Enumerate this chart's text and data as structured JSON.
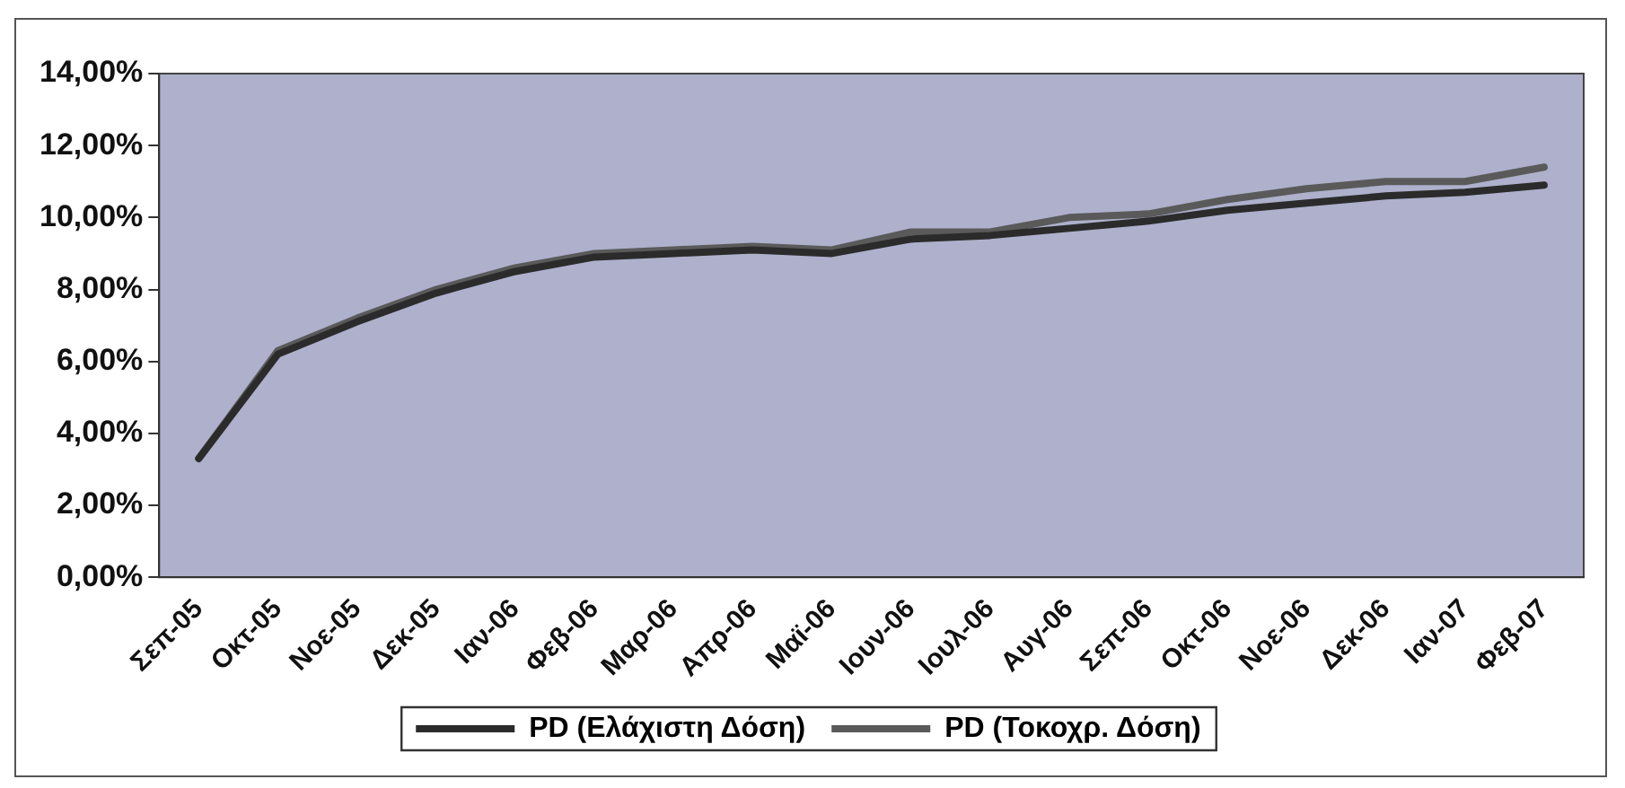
{
  "chart_data": {
    "type": "line",
    "categories": [
      "Σεπ-05",
      "Οκτ-05",
      "Νοε-05",
      "Δεκ-05",
      "Ιαν-06",
      "Φεβ-06",
      "Μαρ-06",
      "Απρ-06",
      "Μαϊ-06",
      "Ιουν-06",
      "Ιουλ-06",
      "Αυγ-06",
      "Σεπ-06",
      "Οκτ-06",
      "Νοε-06",
      "Δεκ-06",
      "Ιαν-07",
      "Φεβ-07"
    ],
    "series": [
      {
        "name": "PD (Ελάχιστη Δόση)",
        "color": "#2b2b2b",
        "values": [
          3.3,
          6.2,
          7.1,
          7.9,
          8.5,
          8.9,
          9.0,
          9.1,
          9.0,
          9.4,
          9.5,
          9.7,
          9.9,
          10.2,
          10.4,
          10.6,
          10.7,
          10.9
        ]
      },
      {
        "name": "PD (Τοκοχρ. Δόση)",
        "color": "#5a5a5a",
        "values": [
          3.3,
          6.3,
          7.2,
          8.0,
          8.6,
          9.0,
          9.1,
          9.2,
          9.1,
          9.6,
          9.6,
          10.0,
          10.1,
          10.5,
          10.8,
          11.0,
          11.0,
          11.4
        ]
      }
    ],
    "ylim": [
      0,
      14
    ],
    "yticks": [
      {
        "value": 0,
        "label": "0,00%"
      },
      {
        "value": 2,
        "label": "2,00%"
      },
      {
        "value": 4,
        "label": "4,00%"
      },
      {
        "value": 6,
        "label": "6,00%"
      },
      {
        "value": 8,
        "label": "8,00%"
      },
      {
        "value": 10,
        "label": "10,00%"
      },
      {
        "value": 12,
        "label": "12,00%"
      },
      {
        "value": 14,
        "label": "14,00%"
      }
    ],
    "grid": false,
    "legend": "bottom",
    "marker": "none",
    "line_style": "solid"
  }
}
